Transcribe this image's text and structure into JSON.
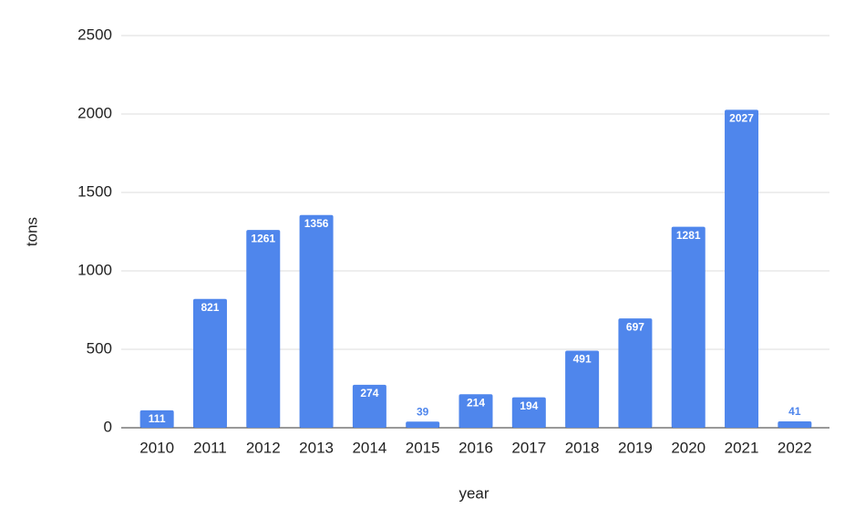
{
  "chart_data": {
    "type": "bar",
    "x_label": "year",
    "y_label": "tons",
    "categories": [
      "2010",
      "2011",
      "2012",
      "2013",
      "2014",
      "2015",
      "2016",
      "2017",
      "2018",
      "2019",
      "2020",
      "2021",
      "2022"
    ],
    "values": [
      111,
      821,
      1261,
      1356,
      274,
      39,
      214,
      194,
      491,
      697,
      1281,
      2027,
      41
    ],
    "color": "#4f86ec",
    "ylim": [
      0,
      2500
    ],
    "yticks": [
      0,
      500,
      1000,
      1500,
      2000,
      2500
    ],
    "grid": true
  }
}
